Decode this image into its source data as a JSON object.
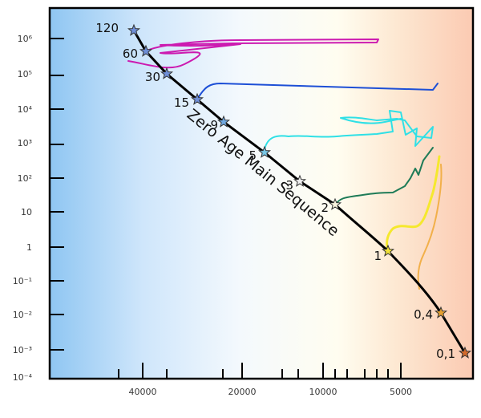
{
  "chart_data": {
    "type": "line",
    "title": "",
    "xlabel": "",
    "ylabel": "",
    "x_axis": {
      "scale": "log",
      "direction": "decreasing"
    },
    "y_axis": {
      "scale": "log"
    },
    "main_sequence": {
      "label": "Zero Age Main Sequence",
      "stars": [
        {
          "mass_label": "120",
          "color": "#6f8fd8"
        },
        {
          "mass_label": "60",
          "color": "#6f8fd8"
        },
        {
          "mass_label": "30",
          "color": "#6f8fd8"
        },
        {
          "mass_label": "15",
          "color": "#6f8fd8"
        },
        {
          "mass_label": "9",
          "color": "#6fa8e0"
        },
        {
          "mass_label": "5",
          "color": "#79c7e6"
        },
        {
          "mass_label": "3",
          "color": "#f0f0f0"
        },
        {
          "mass_label": "2",
          "color": "#f7f3de"
        },
        {
          "mass_label": "1",
          "color": "#f2e23a"
        },
        {
          "mass_label": "0,4",
          "color": "#e6a030"
        },
        {
          "mass_label": "0,1",
          "color": "#d36a2a"
        }
      ]
    },
    "tracks": [
      {
        "mass_label": "60",
        "color": "#cc1ab0"
      },
      {
        "mass_label": "15",
        "color": "#1d4fd6"
      },
      {
        "mass_label": "5",
        "color": "#2fe0e6"
      },
      {
        "mass_label": "2",
        "color": "#1e7b57"
      },
      {
        "mass_label": "1",
        "color": "#f5e82e"
      },
      {
        "mass_label": "0,4",
        "color": "#f2b04a"
      }
    ],
    "x_tick_labels": [
      "40000",
      "20000",
      "10000",
      "5000"
    ],
    "y_tick_labels": [
      "10⁶",
      "10⁵",
      "10⁴",
      "10³",
      "10²",
      "10",
      "1",
      "10⁻¹",
      "10⁻²",
      "10⁻³",
      "10⁻⁴"
    ],
    "colors": {
      "axis": "#000000",
      "main_sequence_line": "#000000",
      "background_hot": "#8fc6f2",
      "background_mid": "#fffdf0",
      "background_cool": "#fbcab2"
    }
  }
}
